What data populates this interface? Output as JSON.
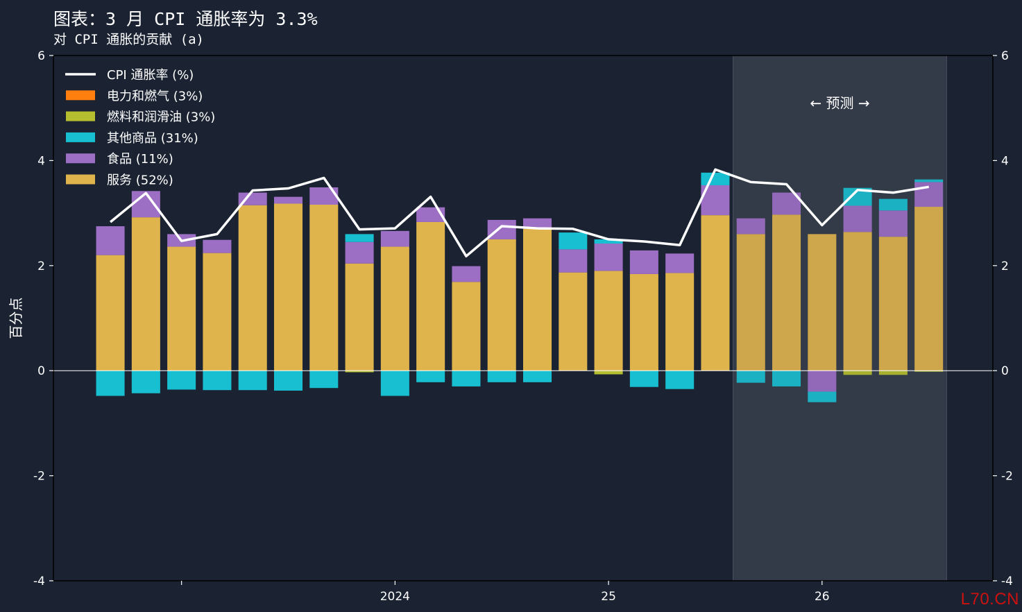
{
  "title": "图表：3 月 CPI 通胀率为 3.3%",
  "subtitle": "对 CPI 通胀的贡献 (a)",
  "watermark": "L70.CN",
  "forecast_label": "← 预测 →",
  "colors": {
    "background": "#1b2333",
    "services": "#dfb44d",
    "food": "#9c6fc4",
    "other_goods": "#18bfd0",
    "fuels": "#b5be2e",
    "energy": "#ff7f0e",
    "line": "#ffffff",
    "forecast_shade": "#343b48"
  },
  "chart_data": {
    "type": "bar",
    "stacked": true,
    "ylabel": "百分点",
    "ylim": [
      -4,
      6
    ],
    "y_ticks": [
      -4,
      -2,
      0,
      2,
      4,
      6
    ],
    "x_ticks": [
      {
        "x": 0,
        "label": ""
      },
      {
        "x": 6,
        "label": "2024"
      },
      {
        "x": 12,
        "label": "25"
      },
      {
        "x": 18,
        "label": "26"
      }
    ],
    "x_range": [
      -3.6,
      22.8
    ],
    "forecast_start_index": 18,
    "legend_position": "top-left",
    "x": [
      -2,
      -1,
      0,
      1,
      2,
      3,
      4,
      5,
      6,
      7,
      8,
      9,
      10,
      11,
      12,
      13,
      14,
      15,
      16,
      17,
      18,
      19,
      20,
      21
    ],
    "series": [
      {
        "name": "电力和燃气 (3%)",
        "key": "energy",
        "values": [
          0,
          0,
          0,
          0,
          0,
          0,
          0,
          0,
          0,
          0,
          0,
          0,
          0,
          0,
          0,
          0,
          0,
          0,
          0,
          0,
          0,
          0,
          0,
          0
        ]
      },
      {
        "name": "燃料和润滑油 (3%)",
        "key": "fuels",
        "values": [
          0,
          0,
          0,
          0,
          0,
          0,
          0,
          -0.03,
          0,
          0,
          0,
          0,
          0,
          0,
          -0.07,
          0,
          0,
          0,
          0,
          0,
          0,
          -0.08,
          -0.08,
          -0.02
        ]
      },
      {
        "name": "其他商品 (31%)",
        "key": "other_goods",
        "values": [
          -0.48,
          -0.43,
          -0.36,
          -0.37,
          -0.37,
          -0.38,
          -0.33,
          0.15,
          -0.48,
          -0.22,
          -0.3,
          -0.22,
          -0.22,
          0.32,
          0.08,
          -0.31,
          -0.35,
          0.24,
          -0.23,
          -0.3,
          -0.2,
          0.34,
          0.22,
          0.05
        ]
      },
      {
        "name": "食品 (11%)",
        "key": "food",
        "values": [
          0.55,
          0.5,
          0.24,
          0.25,
          0.24,
          0.13,
          0.33,
          0.41,
          0.3,
          0.28,
          0.3,
          0.37,
          0.2,
          0.44,
          0.52,
          0.45,
          0.37,
          0.57,
          0.3,
          0.42,
          -0.4,
          0.5,
          0.5,
          0.47
        ]
      },
      {
        "name": "服务 (52%)",
        "key": "services",
        "values": [
          2.2,
          2.92,
          2.36,
          2.24,
          3.15,
          3.18,
          3.16,
          2.04,
          2.36,
          2.83,
          1.69,
          2.5,
          2.7,
          1.87,
          1.9,
          1.84,
          1.86,
          2.96,
          2.6,
          2.97,
          2.6,
          2.64,
          2.55,
          3.12
        ]
      },
      {
        "name": "CPI 通胀率 (%)",
        "key": "cpi",
        "type": "line",
        "values": [
          2.83,
          3.38,
          2.47,
          2.6,
          3.43,
          3.47,
          3.67,
          2.69,
          2.71,
          3.31,
          2.18,
          2.75,
          2.71,
          2.7,
          2.5,
          2.46,
          2.39,
          3.83,
          3.59,
          3.55,
          2.77,
          3.44,
          3.39,
          3.5
        ]
      }
    ],
    "legend": [
      {
        "label": "CPI 通胀率 (%)",
        "key": "cpi",
        "kind": "line"
      },
      {
        "label": "电力和燃气 (3%)",
        "key": "energy",
        "kind": "box"
      },
      {
        "label": "燃料和润滑油 (3%)",
        "key": "fuels",
        "kind": "box"
      },
      {
        "label": "其他商品 (31%)",
        "key": "other_goods",
        "kind": "box"
      },
      {
        "label": "食品 (11%)",
        "key": "food",
        "kind": "box"
      },
      {
        "label": "服务 (52%)",
        "key": "services",
        "kind": "box"
      }
    ]
  }
}
